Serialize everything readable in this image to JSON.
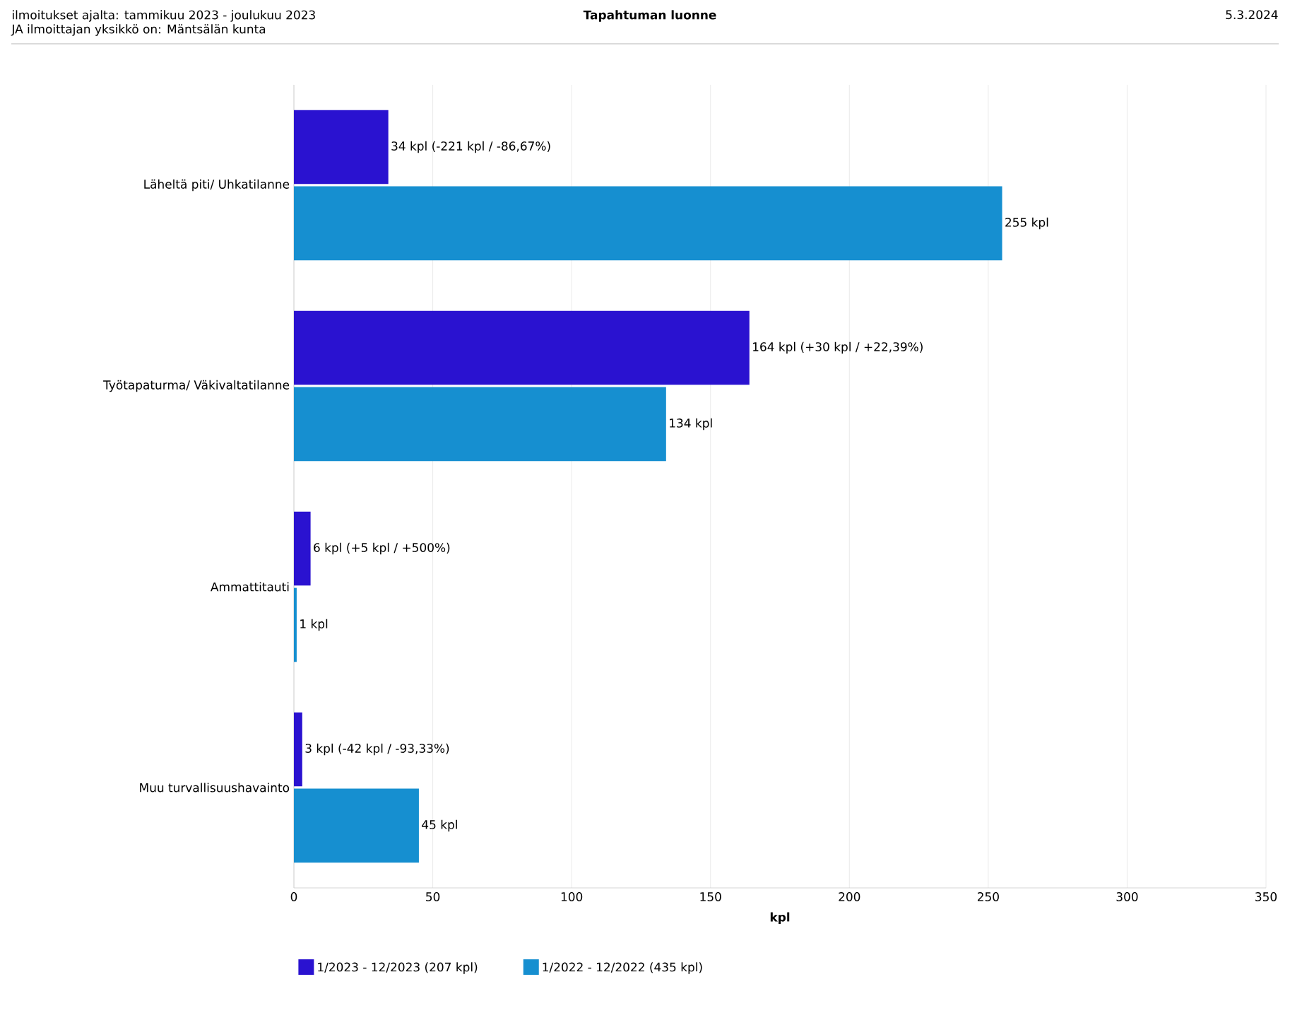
{
  "chart_data": {
    "type": "bar",
    "orientation": "horizontal",
    "title": "Tapahtuman luonne",
    "annotations": [
      "ilmoitukset ajalta: tammikuu 2023 - joulukuu 2023",
      "JA ilmoittajan yksikkö on: Mäntsälän kunta",
      "5.3.2024"
    ],
    "xlabel": "kpl",
    "categories": [
      "Läheltä piti/ Uhkatilanne",
      "Työtapaturma/ Väkivaltatilanne",
      "Ammattitauti",
      "Muu turvallisuushavainto"
    ],
    "series": [
      {
        "name": "1/2023 - 12/2023 (207 kpl)",
        "color": "#2a12d0",
        "values": [
          34,
          164,
          6,
          3
        ],
        "value_labels": [
          "34 kpl (-221 kpl / -86,67%)",
          "164 kpl (+30 kpl / +22,39%)",
          "6 kpl (+5 kpl / +500%)",
          "3 kpl (-42 kpl / -93,33%)"
        ]
      },
      {
        "name": "1/2022 - 12/2022 (435 kpl)",
        "color": "#168fd0",
        "values": [
          255,
          134,
          1,
          45
        ],
        "value_labels": [
          "255 kpl",
          "134 kpl",
          "1 kpl",
          "45 kpl"
        ]
      }
    ],
    "xlim": [
      0,
      350
    ],
    "xticks": [
      0,
      50,
      100,
      150,
      200,
      250,
      300,
      350
    ],
    "grid": "x",
    "legend": "bottom"
  }
}
